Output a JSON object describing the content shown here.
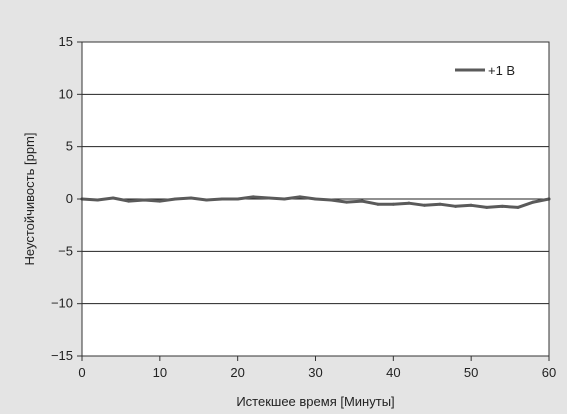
{
  "chart_data": {
    "type": "line",
    "xlabel": "Истекшее время [Минуты]",
    "ylabel": "Неустойчивость [ppm]",
    "xlim": [
      0,
      60
    ],
    "ylim": [
      -15,
      15
    ],
    "x_ticks": [
      0,
      10,
      20,
      30,
      40,
      50,
      60
    ],
    "y_ticks": [
      15,
      10,
      5,
      0,
      -5,
      -10,
      -15
    ],
    "x_tick_labels": [
      "0",
      "10",
      "20",
      "30",
      "40",
      "50",
      "60"
    ],
    "y_tick_labels": [
      "15",
      "10",
      "5",
      "0",
      "−5",
      "−10",
      "−15"
    ],
    "grid": "horizontal",
    "legend_position": "top-right",
    "series": [
      {
        "name": "+1 В",
        "color": "#5a5a5a",
        "x": [
          0,
          2,
          4,
          6,
          8,
          10,
          12,
          14,
          16,
          18,
          20,
          22,
          24,
          26,
          28,
          30,
          32,
          34,
          36,
          38,
          40,
          42,
          44,
          46,
          48,
          50,
          52,
          54,
          56,
          58,
          60
        ],
        "y": [
          0.0,
          -0.1,
          0.1,
          -0.2,
          -0.1,
          -0.2,
          0.0,
          0.1,
          -0.1,
          0.0,
          0.0,
          0.2,
          0.1,
          0.0,
          0.2,
          0.0,
          -0.1,
          -0.3,
          -0.2,
          -0.5,
          -0.5,
          -0.4,
          -0.6,
          -0.5,
          -0.7,
          -0.6,
          -0.8,
          -0.7,
          -0.8,
          -0.3,
          0.0
        ]
      }
    ]
  }
}
